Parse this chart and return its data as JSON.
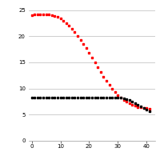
{
  "red_x": [
    0,
    1,
    2,
    3,
    4,
    5,
    6,
    7,
    8,
    9,
    10,
    11,
    12,
    13,
    14,
    15,
    16,
    17,
    18,
    19,
    20,
    21,
    22,
    23,
    24,
    25,
    26,
    27,
    28,
    29,
    30,
    31,
    32,
    33,
    34,
    35,
    36,
    37,
    38,
    39,
    40,
    41
  ],
  "red_y": [
    24.0,
    24.1,
    24.2,
    24.2,
    24.2,
    24.2,
    24.1,
    24.0,
    23.9,
    23.7,
    23.4,
    23.0,
    22.5,
    22.0,
    21.4,
    20.8,
    20.1,
    19.3,
    18.5,
    17.7,
    16.8,
    15.9,
    15.0,
    14.1,
    13.2,
    12.3,
    11.5,
    10.7,
    10.0,
    9.3,
    8.7,
    8.2,
    7.8,
    7.5,
    7.2,
    6.9,
    6.7,
    6.5,
    6.4,
    6.3,
    6.2,
    6.1
  ],
  "black_x": [
    0,
    1,
    2,
    3,
    4,
    5,
    6,
    7,
    8,
    9,
    10,
    11,
    12,
    13,
    14,
    15,
    16,
    17,
    18,
    19,
    20,
    21,
    22,
    23,
    24,
    25,
    26,
    27,
    28,
    29,
    30,
    31,
    32,
    33,
    34,
    35,
    36,
    37,
    38,
    39,
    40,
    41
  ],
  "black_y": [
    8.2,
    8.2,
    8.2,
    8.2,
    8.2,
    8.2,
    8.2,
    8.2,
    8.2,
    8.2,
    8.2,
    8.2,
    8.2,
    8.2,
    8.2,
    8.2,
    8.2,
    8.2,
    8.2,
    8.2,
    8.2,
    8.2,
    8.2,
    8.2,
    8.2,
    8.2,
    8.2,
    8.2,
    8.2,
    8.2,
    8.2,
    8.2,
    8.1,
    8.0,
    7.8,
    7.5,
    7.2,
    6.9,
    6.6,
    6.3,
    6.0,
    5.7
  ],
  "red_color": "#ff0000",
  "black_color": "#000000",
  "xlim": [
    -1,
    43
  ],
  "ylim": [
    0,
    26
  ],
  "xticks": [
    0,
    10,
    20,
    30,
    40
  ],
  "yticks": [
    0,
    5,
    10,
    15,
    20,
    25
  ],
  "marker_size": 1.8,
  "linewidth": 0,
  "figsize": [
    2.0,
    2.0
  ],
  "dpi": 100,
  "bg_color": "#ffffff",
  "grid_color": "#bbbbbb"
}
